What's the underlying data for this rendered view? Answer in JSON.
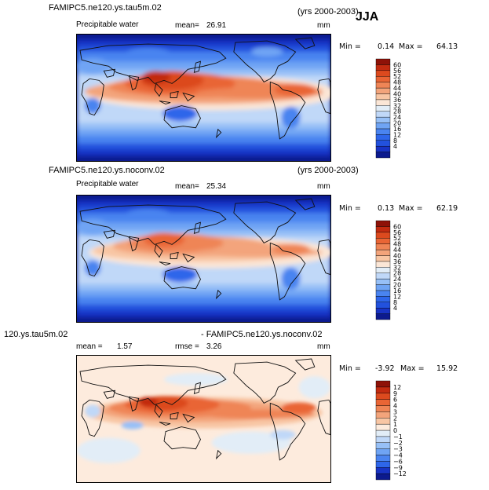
{
  "season": "JJA",
  "colors": {
    "field": [
      "#0c1a8e",
      "#1833c4",
      "#2251dd",
      "#2e66ea",
      "#4a84f0",
      "#6fa4f4",
      "#97c0f7",
      "#c0d8f8",
      "#e2edf7",
      "#fbe6d6",
      "#f8c6a4",
      "#f3a47b",
      "#ef8556",
      "#e96535",
      "#dc4a1e",
      "#c22b10",
      "#8e1208"
    ],
    "diff": [
      "#0c1a8e",
      "#1833c4",
      "#2e66ea",
      "#4a84f0",
      "#6fa4f4",
      "#97c0f7",
      "#c0d8f8",
      "#e2edf7",
      "#fdebdd",
      "#f8c6a4",
      "#f3a47b",
      "#ef8556",
      "#e96535",
      "#dc4a1e",
      "#c22b10",
      "#8e1208"
    ]
  },
  "panels": [
    {
      "id": "top",
      "case": "FAMIPC5.ne120.ys.tau5m.02",
      "years": "(yrs 2000-2003)",
      "variable": "Precipitable water",
      "mean_label": "mean=",
      "mean_value": "26.91",
      "units": "mm",
      "min_label": "Min =",
      "min_value": "0.14",
      "max_label": "Max =",
      "max_value": "64.13"
    },
    {
      "id": "middle",
      "case": "FAMIPC5.ne120.ys.noconv.02",
      "years": "(yrs 2000-2003)",
      "variable": "Precipitable water",
      "mean_label": "mean=",
      "mean_value": "25.34",
      "units": "mm",
      "min_label": "Min =",
      "min_value": "0.13",
      "max_label": "Max =",
      "max_value": "62.19"
    },
    {
      "id": "bottom",
      "case_left": "120.ys.tau5m.02",
      "case_right": "- FAMIPC5.ne120.ys.noconv.02",
      "mean_label": "mean =",
      "mean_value": "1.57",
      "rmse_label": "rmse =",
      "rmse_value": "3.26",
      "units": "mm",
      "min_label": "Min =",
      "min_value": "-3.92",
      "max_label": "Max =",
      "max_value": "15.92"
    }
  ],
  "chart_data": [
    {
      "type": "heatmap",
      "title": "FAMIPC5.ne120.ys.tau5m.02 (yrs 2000-2003) JJA",
      "subtitle": "Precipitable water",
      "units": "mm",
      "mean": 26.91,
      "min": 0.14,
      "max": 64.13,
      "colorbar_levels": [
        4,
        8,
        12,
        16,
        20,
        24,
        28,
        32,
        36,
        40,
        44,
        48,
        52,
        56,
        60
      ]
    },
    {
      "type": "heatmap",
      "title": "FAMIPC5.ne120.ys.noconv.02 (yrs 2000-2003)",
      "subtitle": "Precipitable water",
      "units": "mm",
      "mean": 25.34,
      "min": 0.13,
      "max": 62.19,
      "colorbar_levels": [
        4,
        8,
        12,
        16,
        20,
        24,
        28,
        32,
        36,
        40,
        44,
        48,
        52,
        56,
        60
      ]
    },
    {
      "type": "heatmap",
      "title": "120.ys.tau5m.02 - FAMIPC5.ne120.ys.noconv.02",
      "units": "mm",
      "mean": 1.57,
      "rmse": 3.26,
      "min": -3.92,
      "max": 15.92,
      "colorbar_levels": [
        -12,
        -9,
        -6,
        -4,
        -3,
        -2,
        -1,
        0,
        1,
        2,
        3,
        4,
        6,
        9,
        12
      ]
    }
  ]
}
